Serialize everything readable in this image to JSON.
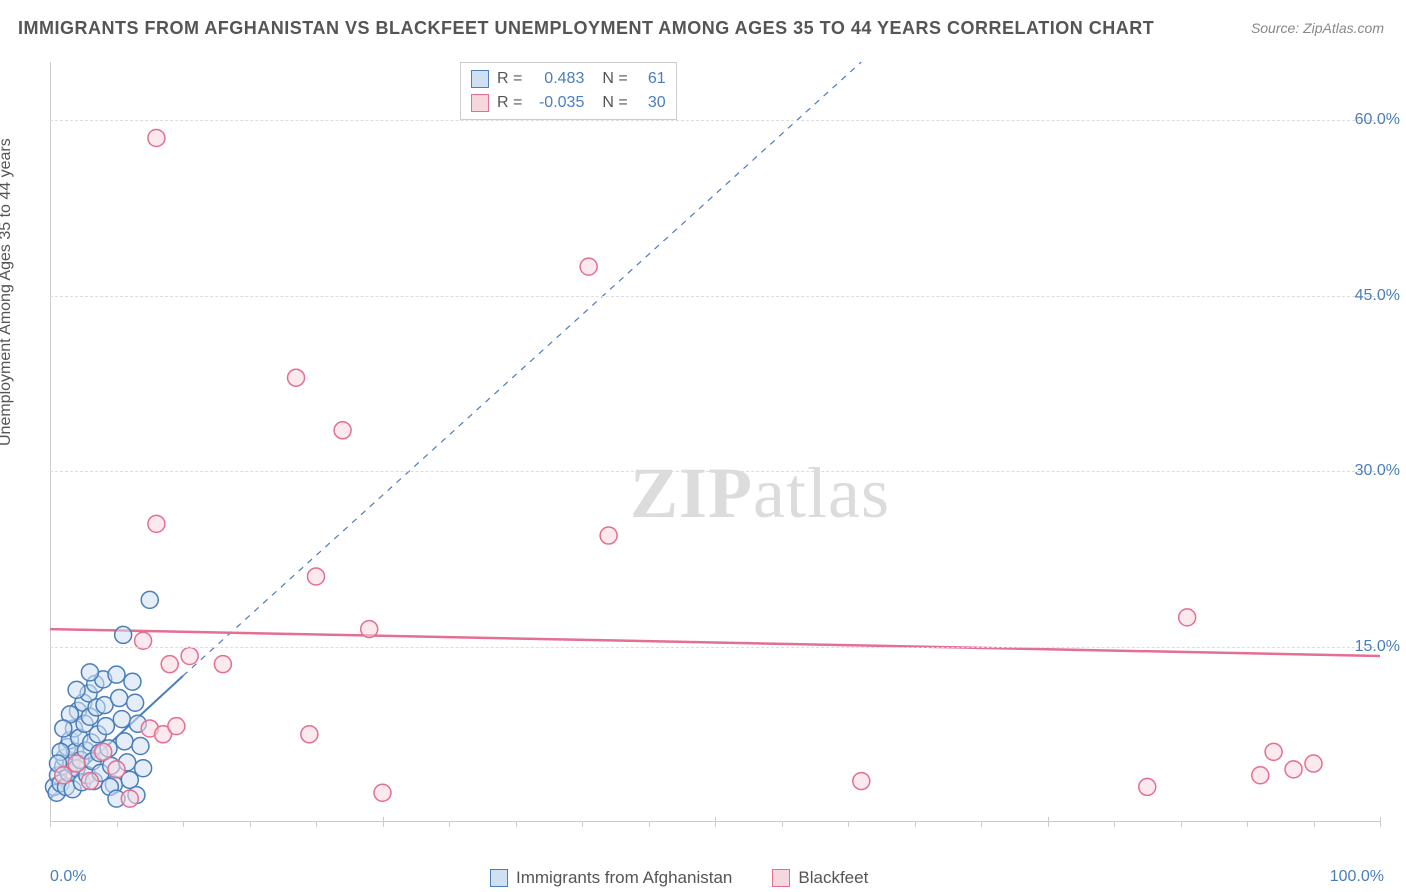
{
  "title": "IMMIGRANTS FROM AFGHANISTAN VS BLACKFEET UNEMPLOYMENT AMONG AGES 35 TO 44 YEARS CORRELATION CHART",
  "source": "Source: ZipAtlas.com",
  "watermark_a": "ZIP",
  "watermark_b": "atlas",
  "y_axis_label": "Unemployment Among Ages 35 to 44 years",
  "chart": {
    "type": "scatter",
    "xlim": [
      0,
      100
    ],
    "ylim": [
      0,
      65
    ],
    "xtick_minor_step": 5,
    "xtick_major": [
      0,
      25,
      50,
      75,
      100
    ],
    "xtick_labels": {
      "0": "0.0%",
      "100": "100.0%"
    },
    "ytick_major": [
      15,
      30,
      45,
      60
    ],
    "ytick_labels": {
      "15": "15.0%",
      "30": "30.0%",
      "45": "45.0%",
      "60": "60.0%"
    },
    "grid_color": "#dddddd",
    "axis_color": "#cccccc",
    "tick_label_color": "#4a7ebb",
    "background_color": "#ffffff",
    "marker_radius": 8.5,
    "marker_stroke_width": 1.5,
    "series": [
      {
        "name": "Immigrants from Afghanistan",
        "fill": "#cfe0f3",
        "stroke": "#4a7ebb",
        "fill_opacity": 0.55,
        "trend": {
          "x1": 0,
          "y1": 2.0,
          "x2": 10,
          "y2": 12.5,
          "style": "solid",
          "color": "#4a7ebb",
          "width": 2,
          "dashed_ext": {
            "x1": 10,
            "y1": 12.5,
            "x2": 61,
            "y2": 65
          }
        },
        "points": [
          [
            0.3,
            3.0
          ],
          [
            0.5,
            2.5
          ],
          [
            0.6,
            4.0
          ],
          [
            0.8,
            3.3
          ],
          [
            1.0,
            4.8
          ],
          [
            1.1,
            5.5
          ],
          [
            1.2,
            3.0
          ],
          [
            1.3,
            6.4
          ],
          [
            1.4,
            4.2
          ],
          [
            1.5,
            7.0
          ],
          [
            1.6,
            5.0
          ],
          [
            1.7,
            2.8
          ],
          [
            1.8,
            8.0
          ],
          [
            1.9,
            6.0
          ],
          [
            2.0,
            4.6
          ],
          [
            2.1,
            9.5
          ],
          [
            2.2,
            7.2
          ],
          [
            2.3,
            5.3
          ],
          [
            2.4,
            3.4
          ],
          [
            2.5,
            10.2
          ],
          [
            2.6,
            8.4
          ],
          [
            2.7,
            6.1
          ],
          [
            2.8,
            4.0
          ],
          [
            2.9,
            11.0
          ],
          [
            3.0,
            9.0
          ],
          [
            3.1,
            6.8
          ],
          [
            3.2,
            5.2
          ],
          [
            3.3,
            3.5
          ],
          [
            3.4,
            11.8
          ],
          [
            3.5,
            9.8
          ],
          [
            3.6,
            7.5
          ],
          [
            3.7,
            5.9
          ],
          [
            3.8,
            4.2
          ],
          [
            4.0,
            12.2
          ],
          [
            4.1,
            10.0
          ],
          [
            4.2,
            8.2
          ],
          [
            4.4,
            6.3
          ],
          [
            4.6,
            4.8
          ],
          [
            4.8,
            3.2
          ],
          [
            5.0,
            12.6
          ],
          [
            5.2,
            10.6
          ],
          [
            5.4,
            8.8
          ],
          [
            5.6,
            6.9
          ],
          [
            5.8,
            5.1
          ],
          [
            6.0,
            3.6
          ],
          [
            6.2,
            12.0
          ],
          [
            6.4,
            10.2
          ],
          [
            6.6,
            8.4
          ],
          [
            6.8,
            6.5
          ],
          [
            7.0,
            4.6
          ],
          [
            3.0,
            12.8
          ],
          [
            2.0,
            11.3
          ],
          [
            1.5,
            9.2
          ],
          [
            1.0,
            8.0
          ],
          [
            0.8,
            6.0
          ],
          [
            0.6,
            5.0
          ],
          [
            4.5,
            3.0
          ],
          [
            5.0,
            2.0
          ],
          [
            6.5,
            2.3
          ],
          [
            7.5,
            19.0
          ],
          [
            5.5,
            16.0
          ]
        ]
      },
      {
        "name": "Blackfeet",
        "fill": "#f7d7de",
        "stroke": "#e36f91",
        "fill_opacity": 0.55,
        "trend": {
          "x1": 0,
          "y1": 16.5,
          "x2": 100,
          "y2": 14.2,
          "style": "solid",
          "color": "#e36f91",
          "width": 2.5
        },
        "points": [
          [
            1.0,
            4.0
          ],
          [
            2.0,
            5.0
          ],
          [
            3.0,
            3.5
          ],
          [
            4.0,
            6.0
          ],
          [
            5.0,
            4.5
          ],
          [
            6.0,
            2.0
          ],
          [
            7.5,
            8.0
          ],
          [
            8.5,
            7.5
          ],
          [
            9.5,
            8.2
          ],
          [
            10.5,
            14.2
          ],
          [
            7.0,
            15.5
          ],
          [
            8.0,
            25.5
          ],
          [
            9.0,
            13.5
          ],
          [
            8.0,
            58.5
          ],
          [
            18.5,
            38.0
          ],
          [
            13.0,
            13.5
          ],
          [
            19.5,
            7.5
          ],
          [
            22.0,
            33.5
          ],
          [
            24.0,
            16.5
          ],
          [
            25.0,
            2.5
          ],
          [
            20.0,
            21.0
          ],
          [
            40.5,
            47.5
          ],
          [
            42.0,
            24.5
          ],
          [
            61.0,
            3.5
          ],
          [
            82.5,
            3.0
          ],
          [
            85.5,
            17.5
          ],
          [
            91.0,
            4.0
          ],
          [
            92.0,
            6.0
          ],
          [
            93.5,
            4.5
          ],
          [
            95.0,
            5.0
          ]
        ]
      }
    ]
  },
  "legend_top": [
    {
      "swatch_fill": "#cfe0f3",
      "swatch_stroke": "#4a7ebb",
      "r_label": "R =",
      "r_value": "0.483",
      "n_label": "N =",
      "n_value": "61"
    },
    {
      "swatch_fill": "#f7d7de",
      "swatch_stroke": "#e36f91",
      "r_label": "R =",
      "r_value": "-0.035",
      "n_label": "N =",
      "n_value": "30"
    }
  ],
  "legend_bottom": [
    {
      "swatch_fill": "#cfe0f3",
      "swatch_stroke": "#4a7ebb",
      "label": "Immigrants from Afghanistan"
    },
    {
      "swatch_fill": "#f7d7de",
      "swatch_stroke": "#e36f91",
      "label": "Blackfeet"
    }
  ]
}
